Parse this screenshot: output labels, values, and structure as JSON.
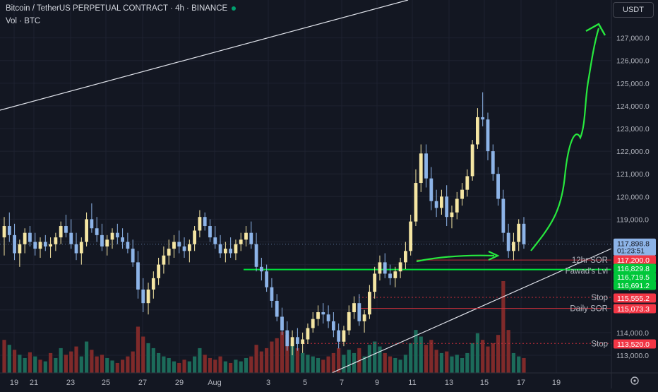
{
  "header": {
    "title": "Bitcoin / TetherUS PERPETUAL CONTRACT · 4h · BINANCE",
    "sub": "Vol · BTC"
  },
  "currency": "USDT",
  "colors": {
    "bg": "#131722",
    "up": "#f5e6a3",
    "down": "#8db4e8",
    "grid": "#1e2230",
    "axisText": "#b2b5be",
    "volUp": "#1c6b5a",
    "volDown": "#7f2a2a",
    "arrow": "#27e83e"
  },
  "chart_data": {
    "type": "candlestick",
    "symbol": "BTCUSDT.P",
    "interval": "4h",
    "y_axis": {
      "ticks": [
        113000,
        114000,
        115000,
        116000,
        117000,
        118000,
        119000,
        120000,
        121000,
        122000,
        123000,
        124000,
        125000,
        126000,
        127000
      ],
      "labels": [
        "113,000.0",
        "114,000.0",
        "115,000.0",
        "116,000.0",
        "117,000.0",
        "118,000.0",
        "119,000.0",
        "120,000.0",
        "121,000.0",
        "122,000.0",
        "123,000.0",
        "124,000.0",
        "125,000.0",
        "126,000.0",
        "127,000.0"
      ]
    },
    "x_axis": {
      "labels": [
        "19",
        "21",
        "23",
        "25",
        "27",
        "29",
        "Aug",
        "3",
        "5",
        "7",
        "9",
        "11",
        "13",
        "15",
        "17",
        "19"
      ]
    },
    "last_price": "117,898.8",
    "countdown": "01:23:51",
    "price_tags": [
      {
        "value": "117,200.0",
        "color": "#f23645"
      },
      {
        "value": "116,829.8",
        "color": "#00c73a"
      },
      {
        "value": "116,719.5",
        "color": "#00c73a"
      },
      {
        "value": "116,691.2",
        "color": "#00c73a"
      },
      {
        "value": "115,555.2",
        "color": "#f23645"
      },
      {
        "value": "115,073.3",
        "color": "#f23645"
      },
      {
        "value": "113,520.0",
        "color": "#f23645"
      }
    ],
    "levels": [
      {
        "label": "12hr SOR",
        "price": 117200,
        "color": "#f23645"
      },
      {
        "label": "Fawad's Lvl",
        "price": 116720,
        "color": "#00e03a"
      },
      {
        "label": "Stop",
        "price": 115555,
        "color": "#f23645"
      },
      {
        "label": "Daily SOR",
        "price": 115073,
        "color": "#f23645"
      },
      {
        "label": "Stop",
        "price": 113520,
        "color": "#f23645"
      }
    ],
    "candles": [
      [
        118200,
        119100,
        117400,
        118700
      ],
      [
        118700,
        119300,
        118000,
        118300
      ],
      [
        118300,
        118800,
        117200,
        117500
      ],
      [
        117500,
        118100,
        116900,
        117900
      ],
      [
        117900,
        118600,
        117500,
        118400
      ],
      [
        118400,
        118700,
        117800,
        118000
      ],
      [
        118000,
        118400,
        117400,
        117700
      ],
      [
        117700,
        118200,
        117300,
        118000
      ],
      [
        118000,
        118300,
        117600,
        117800
      ],
      [
        117800,
        118200,
        117300,
        117900
      ],
      [
        117900,
        118400,
        117600,
        118200
      ],
      [
        118200,
        118900,
        117900,
        118700
      ],
      [
        118700,
        119200,
        118200,
        118400
      ],
      [
        118400,
        119000,
        117700,
        117900
      ],
      [
        117900,
        118400,
        117200,
        117500
      ],
      [
        117500,
        118200,
        117000,
        118000
      ],
      [
        118000,
        119300,
        117800,
        119000
      ],
      [
        119000,
        119700,
        118400,
        118600
      ],
      [
        118600,
        119100,
        118000,
        118300
      ],
      [
        118300,
        118800,
        117600,
        117800
      ],
      [
        117800,
        118300,
        117400,
        118100
      ],
      [
        118100,
        118600,
        117700,
        118400
      ],
      [
        118400,
        118800,
        117900,
        118200
      ],
      [
        118200,
        118600,
        117700,
        118000
      ],
      [
        118000,
        118400,
        117500,
        117700
      ],
      [
        117700,
        118100,
        116900,
        117100
      ],
      [
        117100,
        117600,
        115500,
        115900
      ],
      [
        115900,
        116400,
        114900,
        115300
      ],
      [
        115300,
        116200,
        114800,
        115900
      ],
      [
        115900,
        116700,
        115500,
        116400
      ],
      [
        116400,
        117300,
        116100,
        117000
      ],
      [
        117000,
        117800,
        116600,
        117400
      ],
      [
        117400,
        118100,
        117000,
        117700
      ],
      [
        117700,
        118300,
        117300,
        118000
      ],
      [
        118000,
        118500,
        117500,
        117800
      ],
      [
        117800,
        118200,
        117300,
        117600
      ],
      [
        117600,
        118100,
        117100,
        117900
      ],
      [
        117900,
        118700,
        117600,
        118500
      ],
      [
        118500,
        119400,
        118200,
        119100
      ],
      [
        119100,
        119300,
        118500,
        118700
      ],
      [
        118700,
        119000,
        118000,
        118200
      ],
      [
        118200,
        118700,
        117700,
        117900
      ],
      [
        117900,
        118300,
        117300,
        117500
      ],
      [
        117500,
        118000,
        117100,
        117700
      ],
      [
        117700,
        118200,
        117300,
        117500
      ],
      [
        117500,
        118100,
        117200,
        117900
      ],
      [
        117900,
        118400,
        117600,
        118100
      ],
      [
        118100,
        118700,
        117800,
        118400
      ],
      [
        118400,
        118900,
        117700,
        117900
      ],
      [
        117900,
        118400,
        116700,
        116900
      ],
      [
        116900,
        117300,
        116300,
        116700
      ],
      [
        116700,
        117000,
        115800,
        116000
      ],
      [
        116000,
        116400,
        115100,
        115400
      ],
      [
        115400,
        115700,
        114500,
        114700
      ],
      [
        114700,
        115100,
        113900,
        114100
      ],
      [
        114100,
        114500,
        113200,
        113400
      ],
      [
        113400,
        114100,
        113000,
        113800
      ],
      [
        113800,
        114200,
        113200,
        113500
      ],
      [
        113500,
        114000,
        113100,
        113700
      ],
      [
        113700,
        114400,
        113500,
        114200
      ],
      [
        114200,
        114900,
        114000,
        114600
      ],
      [
        114600,
        115200,
        114300,
        114900
      ],
      [
        114900,
        115300,
        114400,
        114800
      ],
      [
        114800,
        115200,
        114200,
        114500
      ],
      [
        114500,
        114900,
        113800,
        114100
      ],
      [
        114100,
        114400,
        113300,
        113600
      ],
      [
        113600,
        114300,
        113400,
        114100
      ],
      [
        114100,
        115200,
        113900,
        114900
      ],
      [
        114900,
        115600,
        114600,
        115300
      ],
      [
        115300,
        115700,
        114300,
        114500
      ],
      [
        114500,
        115000,
        114000,
        114800
      ],
      [
        114800,
        116100,
        114600,
        115800
      ],
      [
        115800,
        116900,
        115500,
        116600
      ],
      [
        116600,
        117400,
        116300,
        117100
      ],
      [
        117100,
        117500,
        116400,
        116600
      ],
      [
        116600,
        117000,
        116100,
        116400
      ],
      [
        116400,
        116900,
        116000,
        116700
      ],
      [
        116700,
        117300,
        116400,
        117100
      ],
      [
        117100,
        118000,
        116800,
        117600
      ],
      [
        117600,
        119200,
        117400,
        118900
      ],
      [
        118900,
        121200,
        118700,
        120600
      ],
      [
        120600,
        122300,
        120200,
        121900
      ],
      [
        121900,
        122300,
        120400,
        120800
      ],
      [
        120800,
        121300,
        119400,
        119800
      ],
      [
        119800,
        120300,
        119100,
        119500
      ],
      [
        119500,
        120300,
        119200,
        120000
      ],
      [
        120000,
        120500,
        118700,
        119100
      ],
      [
        119100,
        119600,
        118600,
        119300
      ],
      [
        119300,
        120200,
        119000,
        119900
      ],
      [
        119900,
        120600,
        119600,
        120300
      ],
      [
        120300,
        121200,
        120000,
        120900
      ],
      [
        120900,
        122500,
        120700,
        122300
      ],
      [
        122300,
        123900,
        122100,
        123500
      ],
      [
        123500,
        124600,
        123100,
        123400
      ],
      [
        123400,
        123700,
        121600,
        122000
      ],
      [
        122000,
        122300,
        120700,
        121000
      ],
      [
        121000,
        121300,
        119600,
        119900
      ],
      [
        119900,
        120300,
        118000,
        118400
      ],
      [
        118400,
        118800,
        117300,
        117600
      ],
      [
        117600,
        118400,
        117200,
        118000
      ],
      [
        118000,
        119000,
        117600,
        118800
      ],
      [
        118800,
        119100,
        117700,
        117900
      ]
    ],
    "volumes": [
      [
        0.4,
        "down"
      ],
      [
        0.34,
        "up"
      ],
      [
        0.28,
        "down"
      ],
      [
        0.22,
        "up"
      ],
      [
        0.18,
        "up"
      ],
      [
        0.25,
        "down"
      ],
      [
        0.2,
        "up"
      ],
      [
        0.16,
        "down"
      ],
      [
        0.14,
        "up"
      ],
      [
        0.24,
        "down"
      ],
      [
        0.18,
        "up"
      ],
      [
        0.3,
        "up"
      ],
      [
        0.22,
        "down"
      ],
      [
        0.26,
        "down"
      ],
      [
        0.32,
        "down"
      ],
      [
        0.2,
        "up"
      ],
      [
        0.38,
        "up"
      ],
      [
        0.28,
        "down"
      ],
      [
        0.2,
        "down"
      ],
      [
        0.22,
        "down"
      ],
      [
        0.18,
        "up"
      ],
      [
        0.15,
        "up"
      ],
      [
        0.12,
        "down"
      ],
      [
        0.16,
        "down"
      ],
      [
        0.2,
        "down"
      ],
      [
        0.26,
        "down"
      ],
      [
        0.56,
        "down"
      ],
      [
        0.44,
        "down"
      ],
      [
        0.36,
        "up"
      ],
      [
        0.3,
        "up"
      ],
      [
        0.24,
        "up"
      ],
      [
        0.2,
        "up"
      ],
      [
        0.18,
        "up"
      ],
      [
        0.14,
        "up"
      ],
      [
        0.12,
        "down"
      ],
      [
        0.16,
        "down"
      ],
      [
        0.14,
        "up"
      ],
      [
        0.2,
        "up"
      ],
      [
        0.3,
        "up"
      ],
      [
        0.22,
        "down"
      ],
      [
        0.18,
        "down"
      ],
      [
        0.16,
        "down"
      ],
      [
        0.2,
        "down"
      ],
      [
        0.14,
        "up"
      ],
      [
        0.12,
        "down"
      ],
      [
        0.16,
        "up"
      ],
      [
        0.14,
        "up"
      ],
      [
        0.18,
        "up"
      ],
      [
        0.2,
        "down"
      ],
      [
        0.34,
        "down"
      ],
      [
        0.26,
        "down"
      ],
      [
        0.3,
        "down"
      ],
      [
        0.38,
        "down"
      ],
      [
        0.42,
        "down"
      ],
      [
        0.5,
        "down"
      ],
      [
        0.46,
        "down"
      ],
      [
        0.36,
        "up"
      ],
      [
        0.3,
        "down"
      ],
      [
        0.24,
        "up"
      ],
      [
        0.22,
        "up"
      ],
      [
        0.2,
        "up"
      ],
      [
        0.18,
        "up"
      ],
      [
        0.16,
        "down"
      ],
      [
        0.2,
        "down"
      ],
      [
        0.24,
        "down"
      ],
      [
        0.3,
        "down"
      ],
      [
        0.22,
        "up"
      ],
      [
        0.28,
        "up"
      ],
      [
        0.24,
        "up"
      ],
      [
        0.3,
        "down"
      ],
      [
        0.2,
        "up"
      ],
      [
        0.34,
        "up"
      ],
      [
        0.38,
        "up"
      ],
      [
        0.32,
        "up"
      ],
      [
        0.24,
        "down"
      ],
      [
        0.2,
        "down"
      ],
      [
        0.18,
        "up"
      ],
      [
        0.16,
        "up"
      ],
      [
        0.22,
        "up"
      ],
      [
        0.36,
        "up"
      ],
      [
        0.52,
        "up"
      ],
      [
        0.44,
        "up"
      ],
      [
        0.34,
        "down"
      ],
      [
        0.4,
        "down"
      ],
      [
        0.28,
        "down"
      ],
      [
        0.24,
        "up"
      ],
      [
        0.26,
        "down"
      ],
      [
        0.2,
        "up"
      ],
      [
        0.22,
        "up"
      ],
      [
        0.18,
        "up"
      ],
      [
        0.24,
        "up"
      ],
      [
        0.36,
        "up"
      ],
      [
        0.48,
        "up"
      ],
      [
        0.4,
        "down"
      ],
      [
        0.32,
        "down"
      ],
      [
        0.36,
        "down"
      ],
      [
        0.46,
        "down"
      ],
      [
        1.0,
        "down"
      ],
      [
        0.52,
        "down"
      ],
      [
        0.24,
        "up"
      ],
      [
        0.2,
        "up"
      ],
      [
        0.18,
        "down"
      ]
    ]
  }
}
